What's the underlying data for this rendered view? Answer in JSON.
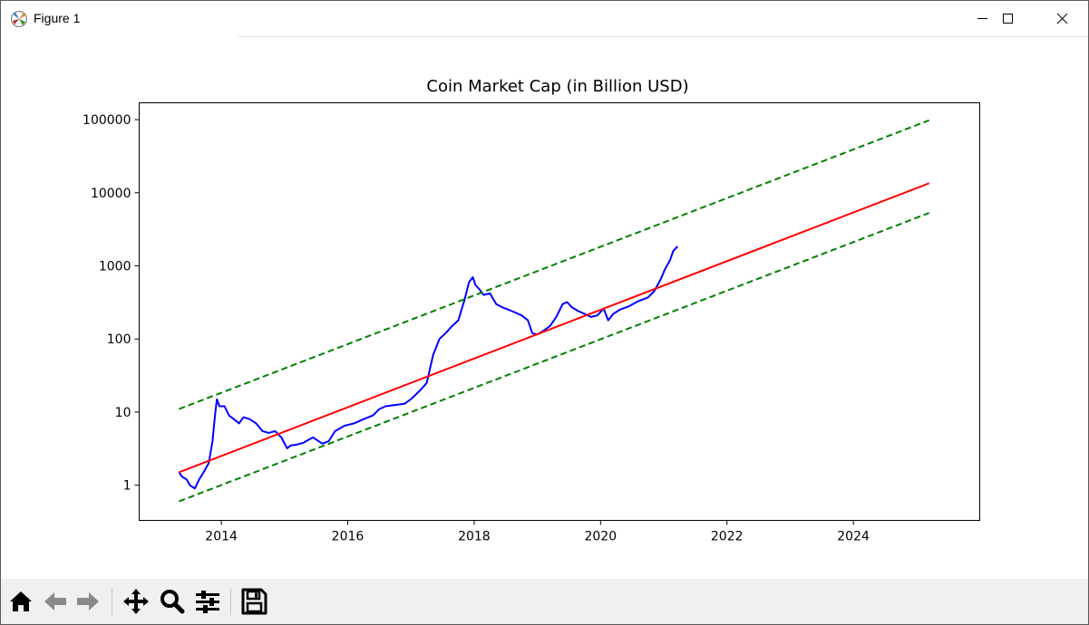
{
  "window": {
    "title": "Figure 1",
    "controls": [
      "minimize",
      "maximize",
      "close"
    ]
  },
  "toolbar": {
    "buttons": [
      {
        "name": "home",
        "icon": "home-icon"
      },
      {
        "name": "back",
        "icon": "arrow-left-icon"
      },
      {
        "name": "forward",
        "icon": "arrow-right-icon"
      },
      {
        "name": "pan",
        "icon": "move-icon"
      },
      {
        "name": "zoom",
        "icon": "magnifier-icon"
      },
      {
        "name": "configure-subplots",
        "icon": "sliders-icon"
      },
      {
        "name": "save",
        "icon": "floppy-disk-icon"
      }
    ]
  },
  "chart_data": {
    "type": "line",
    "title": "Coin Market Cap (in Billion USD)",
    "xlabel": "",
    "ylabel": "",
    "yscale": "log",
    "xlim": [
      2012.7,
      2026.0
    ],
    "ylim": [
      0.33,
      170000
    ],
    "x_ticks": [
      2014,
      2016,
      2018,
      2020,
      2022,
      2024
    ],
    "y_ticks": [
      1,
      10,
      100,
      1000,
      10000,
      100000
    ],
    "y_tick_labels": [
      "1",
      "10",
      "100",
      "1000",
      "10000",
      "100000"
    ],
    "grid": false,
    "legend": "none",
    "series": [
      {
        "color": "#0000ff",
        "style": "solid",
        "x": [
          2013.33,
          2013.38,
          2013.45,
          2013.5,
          2013.58,
          2013.65,
          2013.72,
          2013.8,
          2013.86,
          2013.9,
          2013.93,
          2013.97,
          2014.05,
          2014.12,
          2014.2,
          2014.28,
          2014.35,
          2014.45,
          2014.55,
          2014.65,
          2014.75,
          2014.85,
          2014.95,
          2015.04,
          2015.1,
          2015.2,
          2015.3,
          2015.45,
          2015.6,
          2015.7,
          2015.8,
          2015.95,
          2016.1,
          2016.25,
          2016.4,
          2016.5,
          2016.6,
          2016.75,
          2016.9,
          2017.0,
          2017.15,
          2017.25,
          2017.35,
          2017.45,
          2017.55,
          2017.65,
          2017.75,
          2017.85,
          2017.92,
          2017.98,
          2018.02,
          2018.08,
          2018.15,
          2018.25,
          2018.35,
          2018.45,
          2018.55,
          2018.65,
          2018.75,
          2018.85,
          2018.92,
          2019.0,
          2019.1,
          2019.2,
          2019.3,
          2019.4,
          2019.47,
          2019.55,
          2019.65,
          2019.75,
          2019.85,
          2019.95,
          2020.05,
          2020.12,
          2020.2,
          2020.3,
          2020.45,
          2020.6,
          2020.75,
          2020.85,
          2020.95,
          2021.02,
          2021.1,
          2021.15,
          2021.22
        ],
        "values": [
          1.5,
          1.3,
          1.2,
          1.0,
          0.9,
          1.2,
          1.5,
          2.0,
          4.0,
          9.0,
          15.0,
          12.0,
          12.0,
          9.0,
          8.0,
          7.0,
          8.5,
          8.0,
          7.0,
          5.5,
          5.2,
          5.5,
          4.5,
          3.2,
          3.5,
          3.6,
          3.8,
          4.5,
          3.7,
          4.0,
          5.5,
          6.5,
          7.0,
          8.0,
          9.0,
          11.0,
          12.0,
          12.5,
          13.0,
          15.0,
          20.0,
          25.0,
          60.0,
          100.0,
          120.0,
          150.0,
          180.0,
          350.0,
          600.0,
          700.0,
          550.0,
          480.0,
          400.0,
          420.0,
          300.0,
          270.0,
          250.0,
          230.0,
          210.0,
          180.0,
          120.0,
          115.0,
          130.0,
          150.0,
          200.0,
          300.0,
          320.0,
          270.0,
          240.0,
          220.0,
          200.0,
          210.0,
          260.0,
          180.0,
          220.0,
          250.0,
          280.0,
          330.0,
          370.0,
          450.0,
          650.0,
          900.0,
          1200.0,
          1600.0,
          1850.0
        ]
      },
      {
        "color": "#ff0000",
        "style": "solid",
        "x": [
          2013.33,
          2025.2
        ],
        "values": [
          1.5,
          13500
        ]
      },
      {
        "color": "#008000",
        "style": "dashed",
        "x": [
          2013.33,
          2025.2
        ],
        "values": [
          11.0,
          98000
        ]
      },
      {
        "color": "#008000",
        "style": "dashed",
        "x": [
          2013.33,
          2025.2
        ],
        "values": [
          0.6,
          5300
        ]
      }
    ]
  }
}
